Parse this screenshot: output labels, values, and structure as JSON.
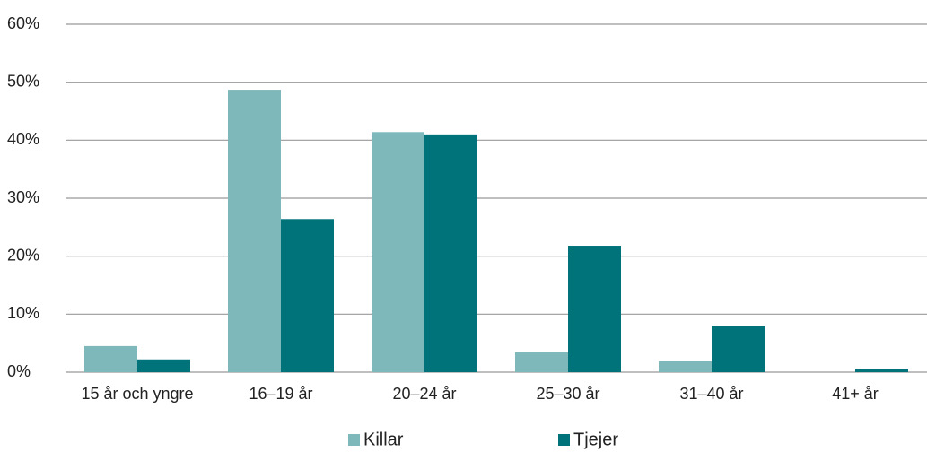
{
  "chart_data": {
    "type": "bar",
    "categories": [
      "15 år och yngre",
      "16–19 år",
      "20–24 år",
      "25–30 år",
      "31–40 år",
      "41+ år"
    ],
    "series": [
      {
        "name": "Killar",
        "color": "#7fb8bb",
        "values": [
          4.5,
          48.7,
          41.4,
          3.4,
          1.9,
          0
        ]
      },
      {
        "name": "Tjejer",
        "color": "#00737a",
        "values": [
          2.2,
          26.4,
          41.0,
          21.8,
          7.9,
          0.5
        ]
      }
    ],
    "ylim": [
      0,
      60
    ],
    "yticks": [
      {
        "value": 0,
        "label": "0%"
      },
      {
        "value": 10,
        "label": "10%"
      },
      {
        "value": 20,
        "label": "20%"
      },
      {
        "value": 30,
        "label": "30%"
      },
      {
        "value": 40,
        "label": "40%"
      },
      {
        "value": 50,
        "label": "50%"
      },
      {
        "value": 60,
        "label": "60%"
      }
    ],
    "grid": true,
    "legend": "bottom"
  }
}
